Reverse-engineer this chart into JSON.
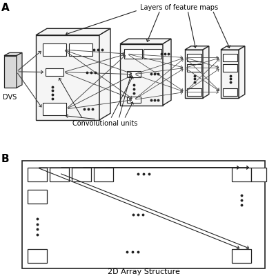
{
  "bg_color": "#ffffff",
  "title_A": "A",
  "title_B": "B",
  "label_dvs": "DVS",
  "label_conv": "Convolutional units",
  "label_layers": "Layers of feature maps",
  "label_2d": "2D Array Structure",
  "text_color": "#000000",
  "line_color": "#444444",
  "box_color": "#222222"
}
